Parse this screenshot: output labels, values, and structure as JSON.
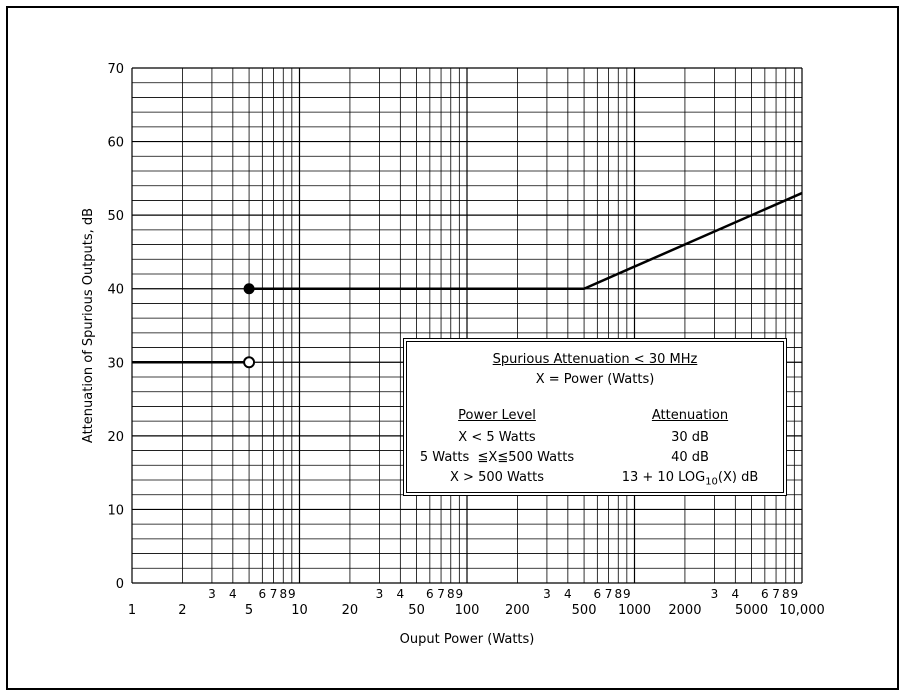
{
  "chart_data": {
    "type": "line",
    "title": "",
    "xlabel": "Ouput Power (Watts)",
    "ylabel": "Attenuation of Spurious Outputs, dB",
    "x_scale": "log",
    "xlim": [
      1,
      10000
    ],
    "ylim": [
      0,
      70
    ],
    "grid": true,
    "x_tick_labels": [
      "1",
      "2",
      "5",
      "10",
      "20",
      "50",
      "100",
      "200",
      "500",
      "1000",
      "2000",
      "5000",
      "10,000"
    ],
    "x_tick_values": [
      1,
      2,
      5,
      10,
      20,
      50,
      100,
      200,
      500,
      1000,
      2000,
      5000,
      10000
    ],
    "x_minor_labels": [
      "3",
      "4",
      "6",
      "7",
      "8",
      "9"
    ],
    "y_tick_labels": [
      "0",
      "10",
      "20",
      "30",
      "40",
      "50",
      "60",
      "70"
    ],
    "series": [
      {
        "x": [
          1,
          5
        ],
        "y": [
          30,
          30
        ],
        "end_marker": "open-circle"
      },
      {
        "x": [
          5,
          500,
          10000
        ],
        "y": [
          40,
          40,
          53
        ],
        "start_marker": "filled-circle"
      }
    ],
    "annotation_box": {
      "title": "Spurious Attenuation  < 30 MHz",
      "subtitle": "X = Power (Watts)",
      "col1_header": "Power Level",
      "col2_header": "Attenuation",
      "rows": [
        {
          "level": "X < 5 Watts",
          "attenuation": "30 dB"
        },
        {
          "level": "5 Watts  ≦X≦500 Watts",
          "attenuation": "40 dB"
        },
        {
          "level": "X > 500 Watts",
          "attenuation_prefix": "13 + 10 LOG",
          "attenuation_sub": "10",
          "attenuation_suffix": "(X) dB"
        }
      ]
    }
  }
}
